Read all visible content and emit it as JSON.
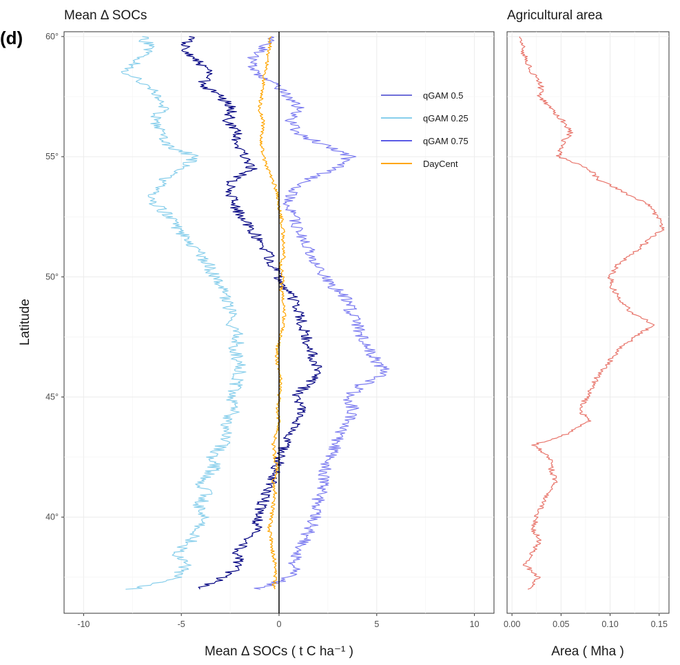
{
  "figure": {
    "panel_letter": "(d)"
  },
  "chart_data": [
    {
      "type": "line",
      "title": "Mean Δ SOCs",
      "xlabel": "Mean Δ SOCs ( t C ha⁻¹ )",
      "ylabel": "Latitude",
      "xlim": [
        -11,
        11
      ],
      "ylim": [
        36,
        60.2
      ],
      "x_ticks": [
        -10,
        -5,
        0,
        5,
        10
      ],
      "y_ticks": [
        40,
        45,
        50,
        55,
        60
      ],
      "y_tick_labels": [
        "40°",
        "45°",
        "50°",
        "55°",
        "60°"
      ],
      "grid": true,
      "vline_at": 0,
      "legend_position": "top-right",
      "legend": [
        {
          "name": "qGAM 0.5",
          "color": "#6e6ed9"
        },
        {
          "name": "qGAM 0.25",
          "color": "#87ceeb"
        },
        {
          "name": "qGAM 0.75",
          "color": "#5a5ae6"
        },
        {
          "name": "DayCent",
          "color": "#ffa500"
        }
      ],
      "series": [
        {
          "name": "qGAM 0.25",
          "color": "#87ceeb",
          "y": [
            37,
            37.5,
            38,
            38.5,
            39,
            39.5,
            40,
            40.5,
            41,
            41.5,
            42,
            42.5,
            43,
            43.5,
            44,
            44.5,
            45,
            45.5,
            46,
            46.5,
            47,
            47.5,
            48,
            48.5,
            49,
            49.5,
            50,
            50.5,
            51,
            51.5,
            52,
            52.5,
            53,
            53.5,
            54,
            54.5,
            55,
            55.5,
            56,
            56.5,
            57,
            57.5,
            58,
            58.5,
            59,
            59.5,
            60
          ],
          "x": [
            -7.5,
            -5.2,
            -4.8,
            -5.3,
            -4.5,
            -4.2,
            -3.9,
            -4.1,
            -3.7,
            -4.0,
            -3.3,
            -3.4,
            -2.9,
            -2.7,
            -2.8,
            -2.2,
            -2.4,
            -2.2,
            -2.0,
            -2.1,
            -2.3,
            -2.0,
            -2.6,
            -2.5,
            -2.7,
            -2.9,
            -3.3,
            -3.6,
            -4.1,
            -4.6,
            -5.2,
            -5.6,
            -6.3,
            -6.4,
            -6.0,
            -4.8,
            -4.3,
            -5.8,
            -6.1,
            -6.4,
            -5.9,
            -6.2,
            -6.8,
            -7.8,
            -7.2,
            -6.6,
            -7.0
          ]
        },
        {
          "name": "qGAM 0.5",
          "color": "#000080",
          "y": [
            37,
            37.5,
            38,
            38.5,
            39,
            39.5,
            40,
            40.5,
            41,
            41.5,
            42,
            42.5,
            43,
            43.5,
            44,
            44.5,
            45,
            45.5,
            46,
            46.5,
            47,
            47.5,
            48,
            48.5,
            49,
            49.5,
            50,
            50.5,
            51,
            51.5,
            52,
            52.5,
            53,
            53.5,
            54,
            54.5,
            55,
            55.5,
            56,
            56.5,
            57,
            57.5,
            58,
            58.5,
            59,
            59.5,
            60
          ],
          "x": [
            -4.2,
            -2.8,
            -2.0,
            -2.2,
            -1.6,
            -1.2,
            -1.0,
            -0.9,
            -0.6,
            -0.4,
            -0.2,
            0.1,
            0.3,
            0.7,
            0.9,
            1.1,
            0.9,
            1.4,
            2.2,
            1.8,
            1.6,
            1.4,
            1.2,
            1.0,
            0.8,
            0.4,
            0.0,
            -0.3,
            -0.6,
            -1.0,
            -1.4,
            -1.9,
            -2.3,
            -2.5,
            -2.4,
            -1.4,
            -1.7,
            -2.3,
            -2.1,
            -2.6,
            -2.4,
            -3.0,
            -3.9,
            -3.6,
            -4.2,
            -4.8,
            -4.6
          ]
        },
        {
          "name": "qGAM 0.75",
          "color": "#7b7bf0",
          "y": [
            37,
            37.5,
            38,
            38.5,
            39,
            39.5,
            40,
            40.5,
            41,
            41.5,
            42,
            42.5,
            43,
            43.5,
            44,
            44.5,
            45,
            45.5,
            46,
            46.5,
            47,
            47.5,
            48,
            48.5,
            49,
            49.5,
            50,
            50.5,
            51,
            51.5,
            52,
            52.5,
            53,
            53.5,
            54,
            54.5,
            55,
            55.5,
            56,
            56.5,
            57,
            57.5,
            58,
            58.5,
            59,
            59.5,
            60
          ],
          "x": [
            -1.2,
            0.6,
            0.8,
            0.9,
            1.3,
            1.6,
            1.8,
            1.9,
            2.1,
            2.3,
            2.4,
            2.6,
            2.9,
            3.1,
            3.5,
            3.8,
            3.6,
            4.2,
            5.5,
            5.0,
            4.6,
            4.2,
            4.0,
            3.7,
            3.5,
            2.9,
            2.4,
            2.0,
            1.6,
            1.3,
            1.0,
            0.7,
            0.5,
            0.6,
            1.4,
            2.9,
            3.6,
            2.2,
            1.0,
            0.6,
            1.0,
            0.4,
            -0.2,
            -1.2,
            -1.5,
            -0.8,
            -0.4
          ]
        },
        {
          "name": "DayCent",
          "color": "#ffa500",
          "y": [
            37,
            37.5,
            38,
            38.5,
            39,
            39.5,
            40,
            40.5,
            41,
            41.5,
            42,
            42.5,
            43,
            43.5,
            44,
            44.5,
            45,
            45.5,
            46,
            46.5,
            47,
            47.5,
            48,
            48.5,
            49,
            49.5,
            50,
            50.5,
            51,
            51.5,
            52,
            52.5,
            53,
            53.5,
            54,
            54.5,
            55,
            55.5,
            56,
            56.5,
            57,
            57.5,
            58,
            58.5,
            59,
            59.5,
            60
          ],
          "x": [
            -0.3,
            -0.2,
            -0.2,
            -0.3,
            -0.4,
            -0.5,
            -0.4,
            -0.3,
            -0.2,
            -0.3,
            -0.1,
            -0.2,
            -0.3,
            -0.1,
            0.0,
            -0.1,
            0.0,
            0.1,
            0.0,
            -0.1,
            -0.1,
            0.1,
            0.2,
            0.3,
            0.2,
            0.1,
            0.2,
            0.1,
            0.3,
            0.2,
            0.2,
            0.1,
            0.0,
            -0.1,
            -0.3,
            -0.6,
            -0.8,
            -0.9,
            -0.9,
            -0.8,
            -1.0,
            -0.9,
            -0.8,
            -0.7,
            -0.6,
            -0.5,
            -0.4
          ]
        }
      ]
    },
    {
      "type": "line",
      "title": "Agricultural area",
      "xlabel": "Area ( Mha )",
      "ylabel": "",
      "xlim": [
        -0.005,
        0.16
      ],
      "ylim": [
        36,
        60.2
      ],
      "x_ticks": [
        0.0,
        0.05,
        0.1,
        0.15
      ],
      "x_tick_labels": [
        "0.00",
        "0.05",
        "0.10",
        "0.15"
      ],
      "grid": true,
      "series": [
        {
          "name": "",
          "color": "#e8756b",
          "y": [
            37,
            37.5,
            38,
            38.5,
            39,
            39.5,
            40,
            40.5,
            41,
            41.5,
            42,
            42.5,
            43,
            43.5,
            44,
            44.5,
            45,
            45.5,
            46,
            46.5,
            47,
            47.5,
            48,
            48.5,
            49,
            49.5,
            50,
            50.5,
            51,
            51.5,
            52,
            52.5,
            53,
            53.5,
            54,
            54.5,
            55,
            55.5,
            56,
            56.5,
            57,
            57.5,
            58,
            58.5,
            59,
            59.5,
            60
          ],
          "x": [
            0.018,
            0.026,
            0.014,
            0.021,
            0.028,
            0.022,
            0.024,
            0.031,
            0.036,
            0.044,
            0.04,
            0.038,
            0.022,
            0.058,
            0.078,
            0.068,
            0.077,
            0.082,
            0.09,
            0.1,
            0.11,
            0.125,
            0.145,
            0.123,
            0.11,
            0.103,
            0.1,
            0.108,
            0.125,
            0.138,
            0.155,
            0.148,
            0.14,
            0.115,
            0.09,
            0.078,
            0.048,
            0.05,
            0.06,
            0.052,
            0.04,
            0.028,
            0.03,
            0.021,
            0.014,
            0.011,
            0.008
          ]
        }
      ]
    }
  ]
}
